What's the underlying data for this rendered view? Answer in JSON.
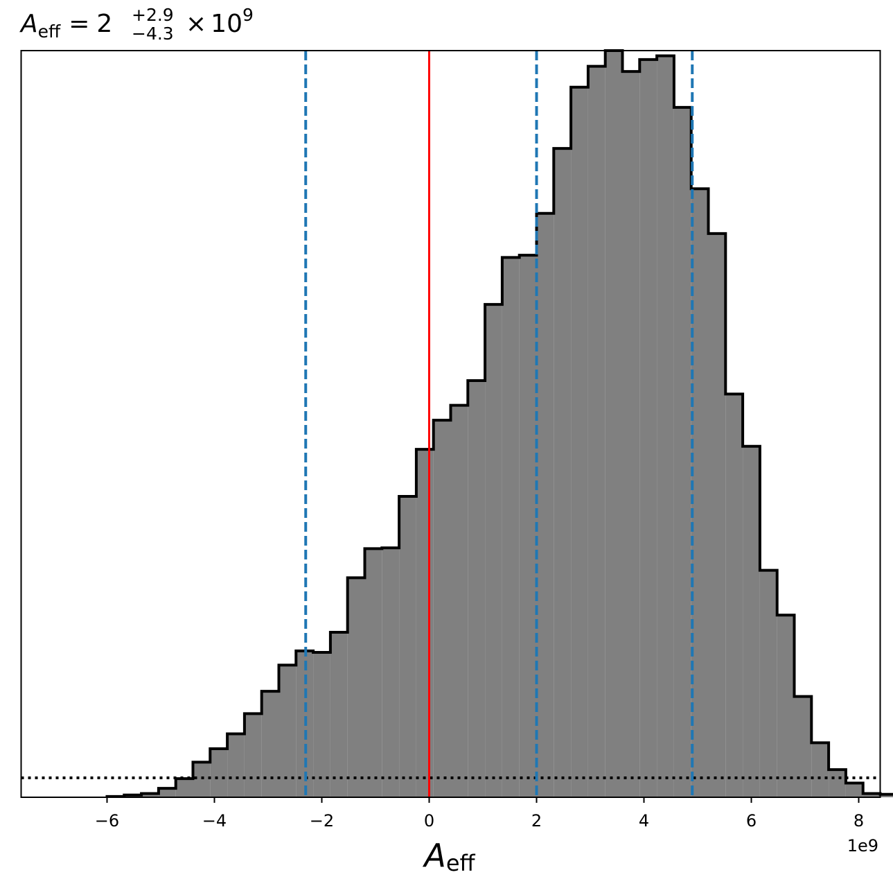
{
  "chart_data": {
    "type": "histogram",
    "title": {
      "symbol": "A",
      "subscript": "eff",
      "equals": "=",
      "median": "2",
      "upper": "+2.9",
      "lower": "−4.3",
      "times": "×",
      "base": "10",
      "exponent": "9"
    },
    "xlabel": {
      "symbol": "A",
      "subscript": "eff"
    },
    "ylabel": "",
    "offset_label": "1e9",
    "xlim": [
      -7.6,
      8.4
    ],
    "ylim": [
      0,
      1.0
    ],
    "xticks": [
      -6,
      -4,
      -2,
      0,
      2,
      4,
      6,
      8
    ],
    "xtick_labels": [
      "−6",
      "−4",
      "−2",
      "0",
      "2",
      "4",
      "6",
      "8"
    ],
    "show_yticks": false,
    "grid": false,
    "bin_start": -6.0,
    "bin_width": 0.32,
    "bin_heights": [
      0.001,
      0.003,
      0.005,
      0.012,
      0.025,
      0.047,
      0.065,
      0.085,
      0.112,
      0.142,
      0.177,
      0.196,
      0.194,
      0.221,
      0.294,
      0.333,
      0.334,
      0.403,
      0.466,
      0.505,
      0.525,
      0.558,
      0.66,
      0.723,
      0.726,
      0.782,
      0.869,
      0.951,
      0.979,
      1.0,
      0.972,
      0.988,
      0.993,
      0.924,
      0.815,
      0.755,
      0.54,
      0.47,
      0.304,
      0.244,
      0.135,
      0.073,
      0.037,
      0.019,
      0.005,
      0.004
    ],
    "fill_color": "#808080",
    "edge_color": "#000000",
    "prior_level": 0.026,
    "prior_color": "#000000",
    "truth_value": 0,
    "truth_color": "#ff0000",
    "quantiles": [
      -2.3,
      2.0,
      4.9
    ],
    "quantile_color": "#1f77b4"
  }
}
